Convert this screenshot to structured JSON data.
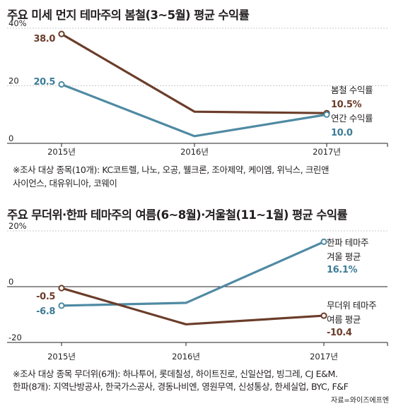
{
  "chart_data": [
    {
      "type": "line",
      "title": "주요 미세 먼지 테마주의 봄철(3~5월) 평균 수익률",
      "categories": [
        "2015년",
        "2016년",
        "2017년"
      ],
      "ytick_labels": [
        "40%",
        "20",
        "0"
      ],
      "ytick_values": [
        40,
        20,
        0
      ],
      "ylim": [
        0,
        40
      ],
      "series": [
        {
          "name": "봄철 수익률",
          "values": [
            38.0,
            11.0,
            10.5
          ],
          "labels": [
            "38.0",
            "",
            "10.5%"
          ],
          "color": "#6b3d2a"
        },
        {
          "name": "연간 수익률",
          "values": [
            20.5,
            2.5,
            10.0
          ],
          "labels": [
            "20.5",
            "",
            "10.0"
          ],
          "color": "#4f8aa3"
        }
      ],
      "note": [
        "※조사 대상 종목(10개): KC코트렐, 나노, 오공, 웰크론, 조아제약, 케이엠, 위닉스, 크린앤",
        "사이언스, 대유위니아, 코웨이"
      ]
    },
    {
      "type": "line",
      "title": "주요 무더위·한파 테마주의 여름(6~8월)·겨울철(11~1월) 평균 수익률",
      "categories": [
        "2015년",
        "2016년",
        "2017년"
      ],
      "ytick_labels": [
        "20%",
        "0",
        "-20"
      ],
      "ytick_values": [
        20,
        0,
        -20
      ],
      "ylim": [
        -20,
        20
      ],
      "series": [
        {
          "name": [
            "한파 테마주",
            "겨울 평균"
          ],
          "values": [
            -6.8,
            -5.8,
            16.1
          ],
          "labels": [
            "-6.8",
            "",
            "16.1%"
          ],
          "color": "#4f8aa3"
        },
        {
          "name": [
            "무더위 테마주",
            "여름 평균"
          ],
          "values": [
            -0.5,
            -13.5,
            -10.4
          ],
          "labels": [
            "-0.5",
            "",
            "-10.4"
          ],
          "color": "#6b3d2a"
        }
      ],
      "note": [
        "※조사 대상 종목 무더위(6개): 하나투어, 롯데칠성, 하이트진로, 신일산업, 빙그레, CJ E&M.",
        "한파(8개): 지역난방공사, 한국가스공사, 경동나비엔, 영원무역, 신성통상, 한세실업, BYC, F&F"
      ]
    }
  ],
  "source": "자료=와이즈에프엔",
  "colors": {
    "brown": "#6b3d2a",
    "blue": "#4f8aa3",
    "grid": "#b8b8b8",
    "axis": "#231f20",
    "label_brown": "#6b3d2a",
    "label_blue": "#3d7b96"
  }
}
